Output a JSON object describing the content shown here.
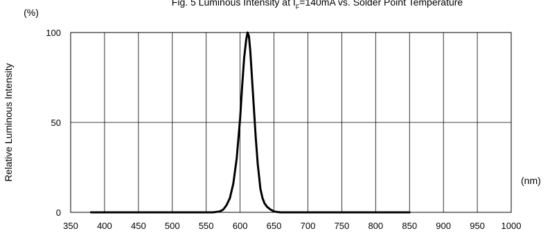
{
  "chart_data": {
    "type": "line",
    "title": "Fig. 5 Luminous Intensity at I",
    "title_sub": "F",
    "title_rest": "=140mA vs. Solder Point Temperature",
    "ylabel": "Relative Luminous Intensity",
    "yunit": "(%)",
    "xunit": "(nm)",
    "xlim": [
      350,
      1000
    ],
    "ylim": [
      0,
      100
    ],
    "x_ticks": [
      350,
      400,
      450,
      500,
      550,
      600,
      650,
      700,
      750,
      800,
      850,
      900,
      950,
      1000
    ],
    "y_ticks": [
      0,
      50,
      100
    ],
    "grid": true,
    "legend": "none",
    "series": [
      {
        "color": "#000000",
        "x": [
          380,
          560,
          570,
          575,
          580,
          585,
          590,
          595,
          600,
          603,
          606,
          609,
          611,
          613,
          615,
          617,
          620,
          623,
          626,
          630,
          633,
          636,
          640,
          645,
          650,
          655,
          660,
          700,
          800,
          850
        ],
        "y": [
          0,
          0,
          0.5,
          1.5,
          4,
          8,
          16,
          30,
          52,
          70,
          86,
          96,
          100,
          98,
          90,
          78,
          60,
          42,
          27,
          13,
          8,
          5,
          3,
          1.5,
          0.5,
          0.2,
          0,
          0,
          0,
          0
        ]
      }
    ]
  }
}
